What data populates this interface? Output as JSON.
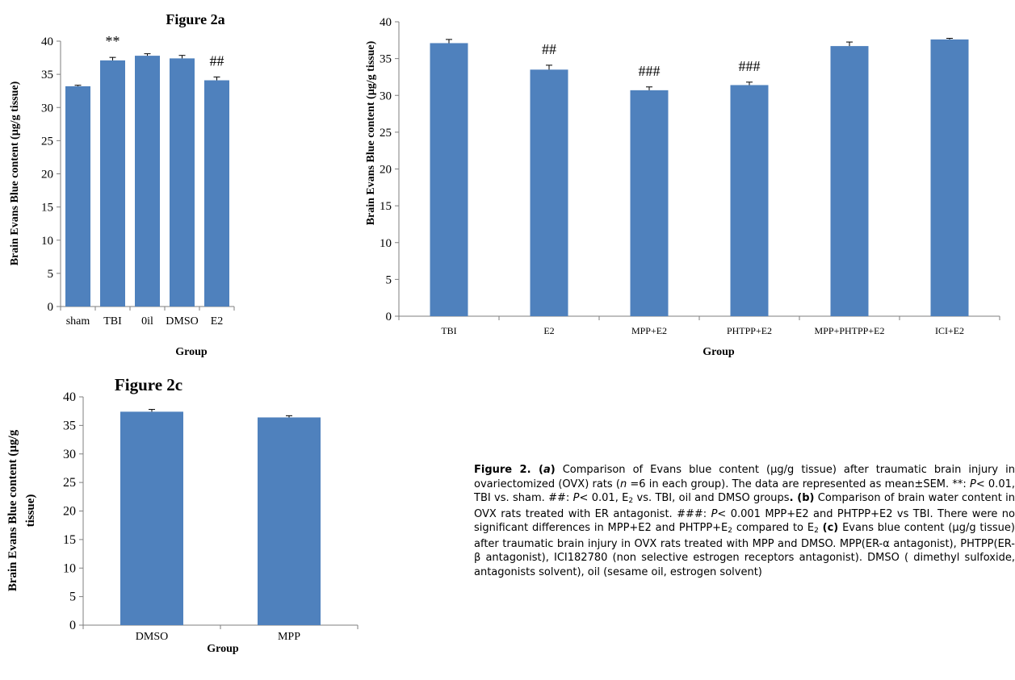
{
  "chart_data": [
    {
      "id": "fig2a",
      "type": "bar",
      "title": "Figure 2a",
      "xlabel": "Group",
      "ylabel": "Brain Evans Blue content (µg/g tissue)",
      "ylim": [
        0,
        40
      ],
      "yticks": [
        "0",
        "5",
        "10",
        "15",
        "20",
        "25",
        "30",
        "35",
        "40"
      ],
      "categories": [
        "sham",
        "TBI",
        "0il",
        "DMSO",
        "E2"
      ],
      "values": [
        33.2,
        37.1,
        37.8,
        37.4,
        34.1
      ],
      "errors": [
        0.15,
        0.45,
        0.3,
        0.45,
        0.5
      ],
      "annotations": [
        "",
        "**",
        "",
        "",
        "##"
      ],
      "color": "#4f81bd",
      "grid": false
    },
    {
      "id": "fig2b",
      "type": "bar",
      "title": "",
      "xlabel": "Group",
      "ylabel": "Brain Evans Blue content (µg/g tissue)",
      "ylim": [
        0,
        40
      ],
      "yticks": [
        "0",
        "5",
        "10",
        "15",
        "20",
        "25",
        "30",
        "35",
        "40"
      ],
      "categories": [
        "TBI",
        "E2",
        "MPP+E2",
        "PHTPP+E2",
        "MPP+PHTPP+E2",
        "ICI+E2"
      ],
      "values": [
        37.1,
        33.5,
        30.7,
        31.4,
        36.7,
        37.6
      ],
      "errors": [
        0.5,
        0.6,
        0.45,
        0.4,
        0.55,
        0.15
      ],
      "annotations": [
        "",
        "##",
        "###",
        "###",
        "",
        ""
      ],
      "color": "#4f81bd",
      "grid": false
    },
    {
      "id": "fig2c",
      "type": "bar",
      "title": "Figure 2c",
      "xlabel": "Group",
      "ylabel_lines": [
        "Brain Evans Blue content (µg/g",
        "tissue)"
      ],
      "ylim": [
        0,
        40
      ],
      "yticks": [
        "0",
        "5",
        "10",
        "15",
        "20",
        "25",
        "30",
        "35",
        "40"
      ],
      "categories": [
        "DMSO",
        "MPP"
      ],
      "values": [
        37.4,
        36.4
      ],
      "errors": [
        0.4,
        0.3
      ],
      "annotations": [
        "",
        ""
      ],
      "color": "#4f81bd",
      "grid": false
    }
  ],
  "caption": {
    "segments": [
      {
        "b": true,
        "t": "Figure 2. ("
      },
      {
        "b": true,
        "i": true,
        "t": "a"
      },
      {
        "b": true,
        "t": ")"
      },
      {
        "t": " Comparison of Evans blue content (µg/g tissue) after traumatic brain injury in ovariectomized (OVX) rats ("
      },
      {
        "i": true,
        "t": "n"
      },
      {
        "t": " =6 in each group). The data are represented as mean±SEM. **: "
      },
      {
        "i": true,
        "t": "P"
      },
      {
        "t": "< 0.01, TBI vs. sham. ##: "
      },
      {
        "i": true,
        "t": "P"
      },
      {
        "t": "< 0.01, E"
      },
      {
        "sub": true,
        "t": "2"
      },
      {
        "t": " vs. TBI, oil and DMSO groups"
      },
      {
        "b": true,
        "t": ". (b)"
      },
      {
        "t": " Comparison of brain water content in OVX rats treated with ER antagonist. ###: "
      },
      {
        "i": true,
        "t": "P"
      },
      {
        "t": "< 0.001 MPP+E2 and PHTPP+E2 vs TBI. There were no significant differences in MPP+E2 and PHTPP+E"
      },
      {
        "sub": true,
        "t": "2"
      },
      {
        "t": " compared to E"
      },
      {
        "sub": true,
        "t": "2"
      },
      {
        "t": " "
      },
      {
        "b": true,
        "t": "(c)"
      },
      {
        "t": " Evans blue content (µg/g tissue) after traumatic brain injury in OVX rats treated with MPP and DMSO. MPP(ER-α antagonist), PHTPP(ER-β antagonist), ICI182780 (non selective estrogen receptors antagonist). DMSO ( dimethyl sulfoxide, antagonists solvent), oil (sesame oil, estrogen solvent)"
      }
    ]
  }
}
